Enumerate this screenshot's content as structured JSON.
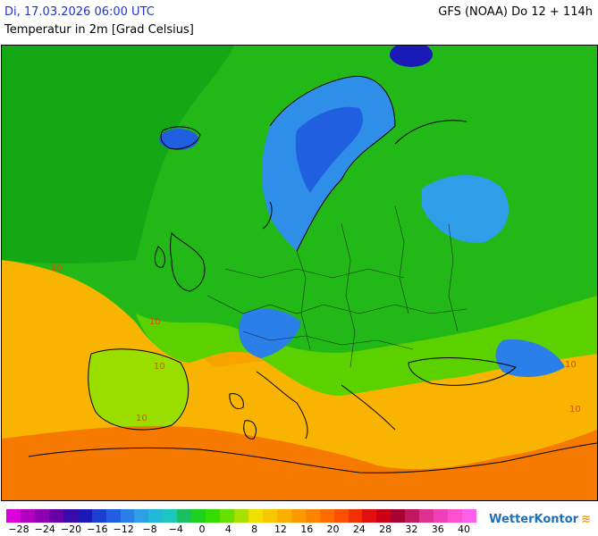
{
  "header": {
    "datetime": "Di, 17.03.2026 06:00 UTC",
    "parameter": "Temperatur in 2m [Grad Celsius]",
    "model_run": "GFS (NOAA) Do 12 + 114h"
  },
  "map": {
    "region": "Europe",
    "contour_labels": [
      "10",
      "10",
      "10",
      "10",
      "10",
      "10"
    ]
  },
  "legend": {
    "tick_labels": [
      "−28",
      "−24",
      "−20",
      "−16",
      "−12",
      "−8",
      "−4",
      "0",
      "4",
      "8",
      "12",
      "16",
      "20",
      "24",
      "28",
      "32",
      "36",
      "40"
    ],
    "colors": [
      "#d900d9",
      "#b300c0",
      "#8c00b0",
      "#6a00a8",
      "#3a0aa8",
      "#1a1ab8",
      "#1c3fd0",
      "#1f5fe0",
      "#2a7fe8",
      "#2f9ee8",
      "#22b8d8",
      "#1cc7c0",
      "#18c060",
      "#1fd020",
      "#33dd00",
      "#66e000",
      "#a8e000",
      "#f0e000",
      "#f7c800",
      "#f9b000",
      "#fa9a00",
      "#fb8400",
      "#fc6e00",
      "#fb5000",
      "#f03000",
      "#e01010",
      "#c80018",
      "#a80030",
      "#c01860",
      "#e03090",
      "#f040b8",
      "#ff50d0",
      "#ff60e8"
    ]
  },
  "branding": {
    "logo_text": "WetterKontor"
  }
}
